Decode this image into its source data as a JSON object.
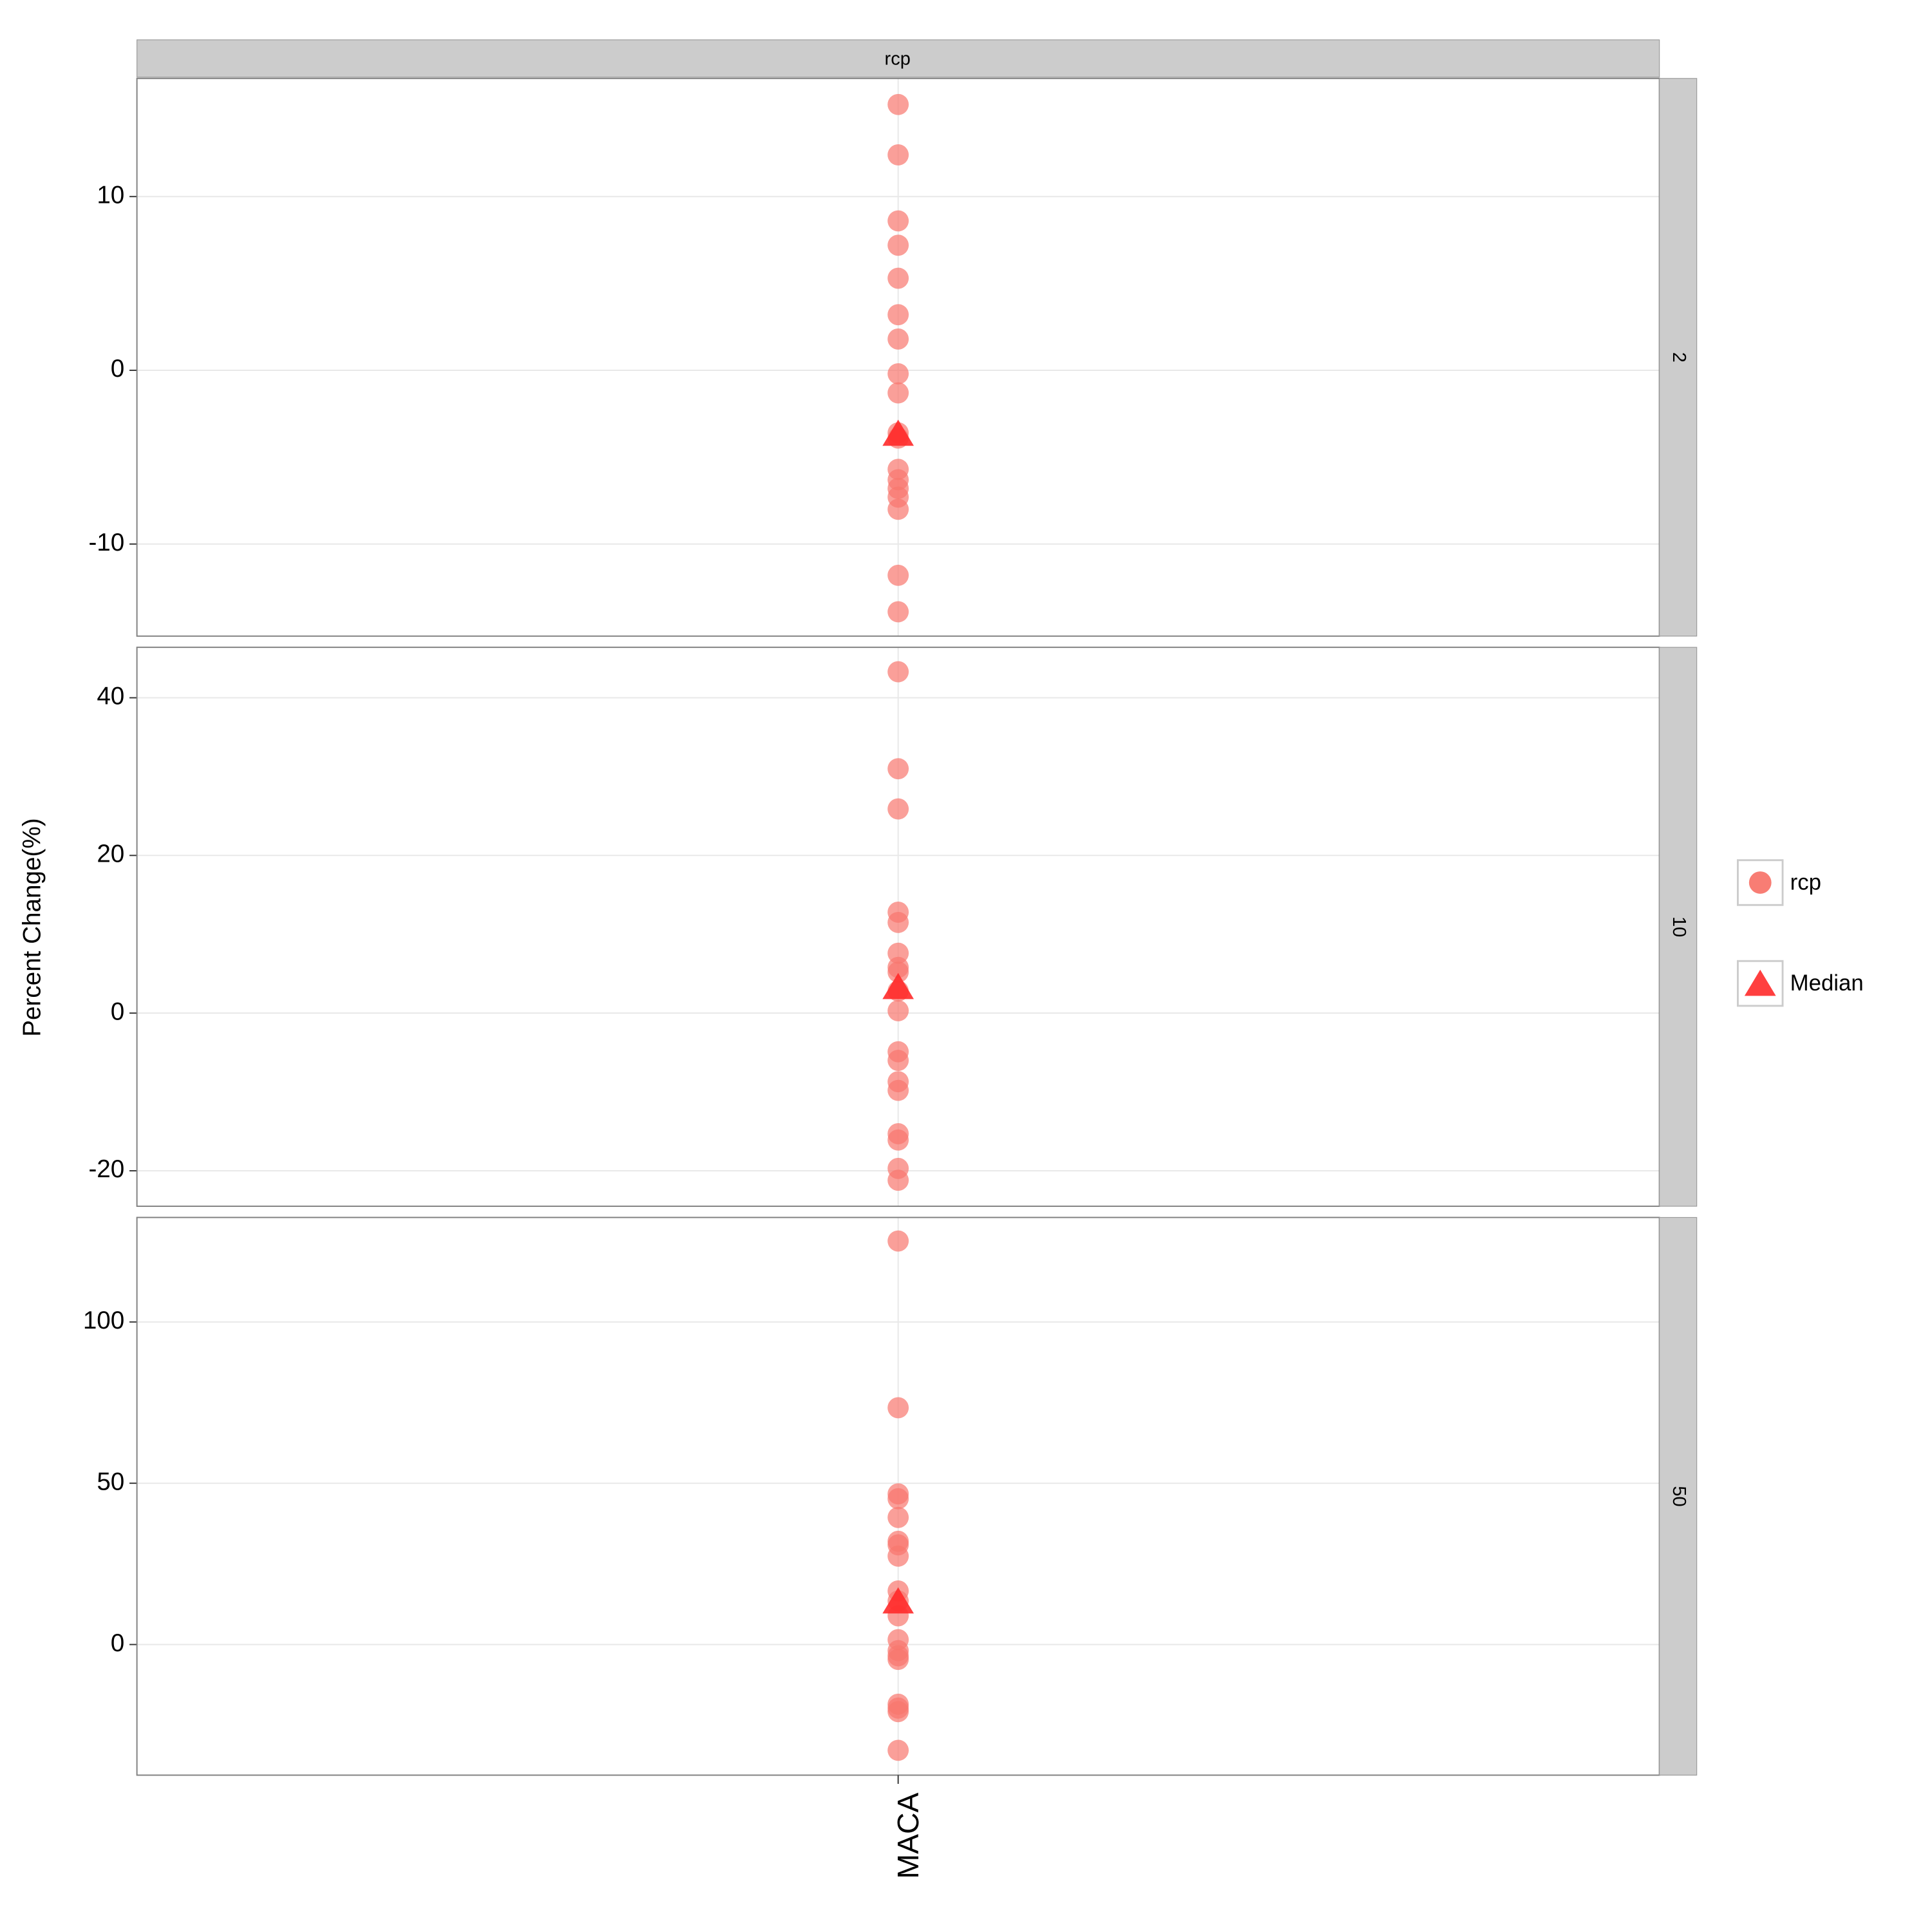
{
  "column_strip": "rcp",
  "y_label": "Percent Change(%)",
  "chart_data": [
    {
      "type": "scatter",
      "facet": "2",
      "categories": [
        "MACA"
      ],
      "ylim": [
        -15.3,
        16.8
      ],
      "yticks": [
        -10,
        0,
        10
      ],
      "grid": true,
      "series": [
        {
          "name": "rcp",
          "color": "#F8766D",
          "marker": "circle",
          "values": [
            15.3,
            12.4,
            8.6,
            7.2,
            5.3,
            3.2,
            1.8,
            -0.2,
            -1.3,
            -3.6,
            -3.9,
            -5.7,
            -6.3,
            -6.8,
            -7.3,
            -8.0,
            -11.8,
            -13.9
          ]
        },
        {
          "name": "Median",
          "color": "#FF2A2A",
          "marker": "triangle",
          "values": [
            -3.7
          ]
        }
      ]
    },
    {
      "type": "scatter",
      "facet": "10",
      "categories": [
        "MACA"
      ],
      "ylim": [
        -24.5,
        46.4
      ],
      "yticks": [
        -20,
        0,
        20,
        40
      ],
      "grid": true,
      "series": [
        {
          "name": "rcp",
          "color": "#F8766D",
          "marker": "circle",
          "values": [
            43.3,
            31.0,
            25.9,
            12.8,
            11.5,
            7.6,
            5.8,
            5.2,
            2.8,
            0.3,
            -4.9,
            -6.0,
            -8.7,
            -9.8,
            -15.3,
            -16.1,
            -19.7,
            -21.2
          ]
        },
        {
          "name": "Median",
          "color": "#FF2A2A",
          "marker": "triangle",
          "values": [
            3.2
          ]
        }
      ]
    },
    {
      "type": "scatter",
      "facet": "50",
      "categories": [
        "MACA"
      ],
      "ylim": [
        -40.5,
        132.4
      ],
      "yticks": [
        0,
        50,
        100
      ],
      "grid": true,
      "series": [
        {
          "name": "rcp",
          "color": "#F8766D",
          "marker": "circle",
          "values": [
            125.1,
            73.4,
            46.7,
            45.2,
            39.4,
            32.0,
            30.9,
            27.4,
            16.6,
            13.5,
            8.9,
            1.5,
            -1.9,
            -3.5,
            -4.6,
            -18.5,
            -19.7,
            -20.8,
            -32.8
          ]
        },
        {
          "name": "Median",
          "color": "#FF2A2A",
          "marker": "triangle",
          "values": [
            13.1
          ]
        }
      ]
    }
  ]
}
